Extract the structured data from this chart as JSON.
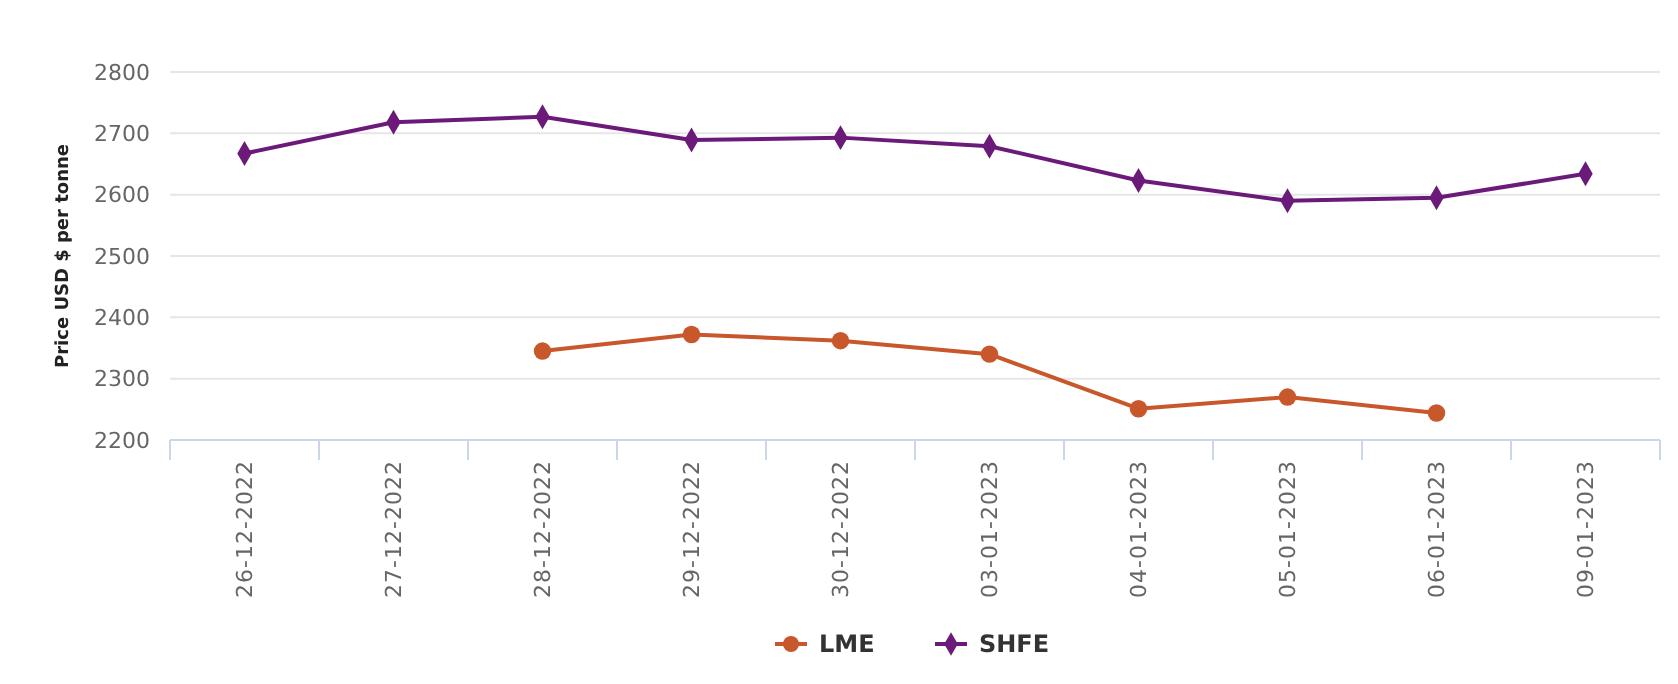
{
  "chart_data": {
    "type": "line",
    "ylabel": "Price USD $ per tonne",
    "categories": [
      "26-12-2022",
      "27-12-2022",
      "28-12-2022",
      "29-12-2022",
      "30-12-2022",
      "03-01-2023",
      "04-01-2023",
      "05-01-2023",
      "06-01-2023",
      "09-01-2023"
    ],
    "series": [
      {
        "name": "LME",
        "color": "#c8572b",
        "marker": "circle",
        "values": [
          null,
          null,
          2345,
          2372,
          2362,
          2340,
          2251,
          2270,
          2244,
          null
        ]
      },
      {
        "name": "SHFE",
        "color": "#6b1a7a",
        "marker": "diamond",
        "values": [
          2667,
          2718,
          2727,
          2689,
          2693,
          2679,
          2623,
          2590,
          2595,
          2634
        ]
      }
    ],
    "ylim": [
      2200,
      2800
    ],
    "yticks": [
      2200,
      2300,
      2400,
      2500,
      2600,
      2700,
      2800
    ],
    "grid": "y",
    "legend": "bottom"
  }
}
